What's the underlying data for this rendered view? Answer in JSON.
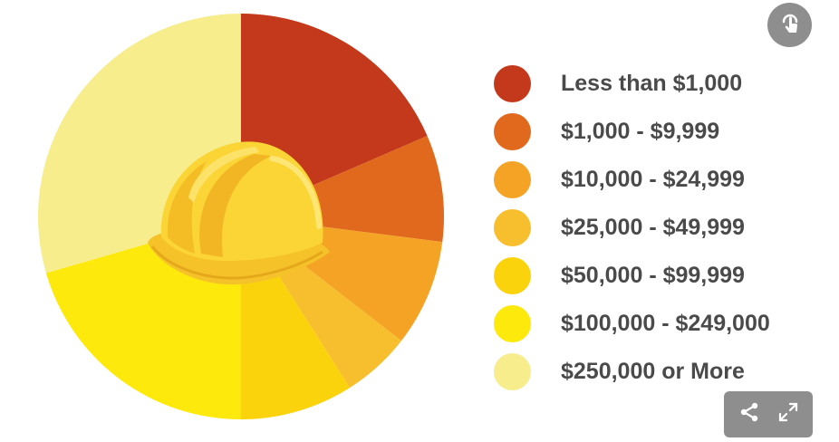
{
  "chart_data": {
    "type": "pie",
    "title": "",
    "categories": [
      "Less than $1,000",
      "$1,000 - $9,999",
      "$10,000 - $24,999",
      "$25,000 - $49,999",
      "$50,000 - $99,999",
      "$100,000 - $249,000",
      "$250,000 or More"
    ],
    "values": [
      18.5,
      8.5,
      8.5,
      5.5,
      9.0,
      20.5,
      29.5
    ],
    "colors": [
      "#c4391b",
      "#e1691d",
      "#f5a325",
      "#f7be2e",
      "#fbd30d",
      "#fde90b",
      "#f7ed8c"
    ],
    "start_angle_deg": 0,
    "direction": "clockwise",
    "legend_position": "right",
    "center_icon": "hard-hat-icon"
  },
  "controls": {
    "top_icon": "pointer-tap-icon",
    "share_icon": "share-icon",
    "expand_icon": "expand-icon"
  }
}
